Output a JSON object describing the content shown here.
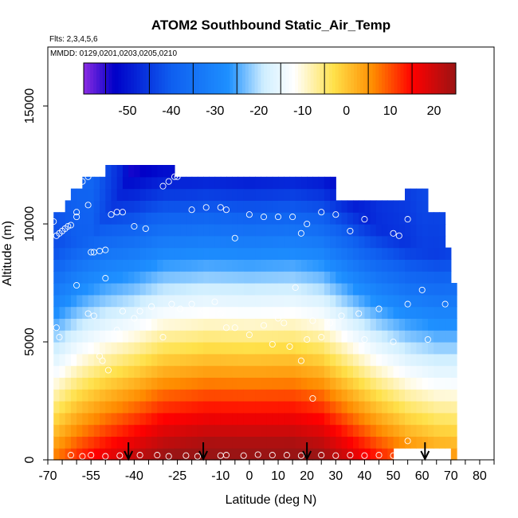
{
  "chart_data": {
    "type": "heatmap",
    "title": "ATOM2 Southbound Static_Air_Temp",
    "flights_label": "Flts: 2,3,4,5,6",
    "dates_label": "MMDD: 0129,0201,0203,0205,0210",
    "xlabel": "Latitude (deg N)",
    "ylabel": "Altitude (m)",
    "xlim": [
      -70,
      85
    ],
    "ylim": [
      0,
      17500
    ],
    "x_ticks": [
      -70,
      -55,
      -40,
      -25,
      -10,
      0,
      10,
      20,
      30,
      40,
      50,
      60,
      70,
      80
    ],
    "y_ticks": [
      0,
      5000,
      10000,
      15000
    ],
    "colorbar": {
      "range": [
        -60,
        25
      ],
      "ticks": [
        -50,
        -40,
        -30,
        -20,
        -10,
        0,
        10,
        20
      ],
      "colors": [
        "#8a2be2",
        "#0000c8",
        "#1e90ff",
        "#cfeeff",
        "#ffffff",
        "#ffe14a",
        "#ff8c00",
        "#ff0000",
        "#9a1414"
      ]
    },
    "colorscale": {
      "values": [
        -60,
        -53,
        -40,
        -27,
        -19,
        -12,
        -3,
        6,
        15,
        25
      ],
      "colors": [
        "#8a2be2",
        "#0000c8",
        "#0f5ff0",
        "#1e90ff",
        "#cfeeff",
        "#ffffff",
        "#ffe14a",
        "#ff8c00",
        "#ff0000",
        "#9a1414"
      ]
    },
    "arrows_lat": [
      -42,
      -16,
      20,
      61
    ],
    "observations": [
      [
        -68,
        10100
      ],
      [
        -67,
        9500
      ],
      [
        -66,
        9600
      ],
      [
        -65,
        9700
      ],
      [
        -64,
        9800
      ],
      [
        -63,
        9900
      ],
      [
        -62,
        9950
      ],
      [
        -60,
        10500
      ],
      [
        -60,
        10300
      ],
      [
        -58,
        11800
      ],
      [
        -56,
        12000
      ],
      [
        -54,
        12200
      ],
      [
        -56,
        10800
      ],
      [
        -55,
        8800
      ],
      [
        -54,
        8800
      ],
      [
        -52,
        8850
      ],
      [
        -50,
        8900
      ],
      [
        -50,
        7700
      ],
      [
        -48,
        10400
      ],
      [
        -46,
        10500
      ],
      [
        -44,
        10500
      ],
      [
        -40,
        9900
      ],
      [
        -36,
        9800
      ],
      [
        -30,
        11600
      ],
      [
        -28,
        11800
      ],
      [
        -26,
        12000
      ],
      [
        -25,
        12000
      ],
      [
        -20,
        10600
      ],
      [
        -15,
        10700
      ],
      [
        -10,
        10700
      ],
      [
        -8,
        10600
      ],
      [
        -5,
        9400
      ],
      [
        0,
        10400
      ],
      [
        5,
        10300
      ],
      [
        10,
        10300
      ],
      [
        15,
        10300
      ],
      [
        18,
        9600
      ],
      [
        20,
        10000
      ],
      [
        25,
        10500
      ],
      [
        30,
        10400
      ],
      [
        35,
        9700
      ],
      [
        40,
        10200
      ],
      [
        45,
        11300
      ],
      [
        47,
        11300
      ],
      [
        50,
        9600
      ],
      [
        52,
        9500
      ],
      [
        55,
        10200
      ],
      [
        -67,
        5600
      ],
      [
        -66,
        5200
      ],
      [
        -60,
        7400
      ],
      [
        -56,
        6200
      ],
      [
        -54,
        6100
      ],
      [
        -52,
        4400
      ],
      [
        -51,
        4200
      ],
      [
        -49,
        3800
      ],
      [
        -46,
        5500
      ],
      [
        -44,
        6300
      ],
      [
        -40,
        6000
      ],
      [
        -38,
        6300
      ],
      [
        -34,
        6500
      ],
      [
        -30,
        5200
      ],
      [
        -27,
        6600
      ],
      [
        -24,
        6400
      ],
      [
        -20,
        6600
      ],
      [
        -16,
        6300
      ],
      [
        -12,
        6700
      ],
      [
        -10,
        6200
      ],
      [
        -8,
        5600
      ],
      [
        -5,
        5600
      ],
      [
        0,
        5300
      ],
      [
        5,
        5700
      ],
      [
        8,
        4900
      ],
      [
        10,
        6000
      ],
      [
        12,
        5800
      ],
      [
        14,
        4800
      ],
      [
        16,
        7300
      ],
      [
        18,
        4200
      ],
      [
        20,
        5100
      ],
      [
        22,
        5900
      ],
      [
        25,
        5200
      ],
      [
        28,
        5800
      ],
      [
        32,
        6100
      ],
      [
        38,
        6200
      ],
      [
        40,
        5100
      ],
      [
        45,
        6400
      ],
      [
        50,
        5000
      ],
      [
        55,
        6600
      ],
      [
        60,
        7200
      ],
      [
        62,
        5100
      ],
      [
        68,
        6600
      ],
      [
        -62,
        200
      ],
      [
        -58,
        150
      ],
      [
        -55,
        200
      ],
      [
        -50,
        150
      ],
      [
        -45,
        180
      ],
      [
        -38,
        200
      ],
      [
        -32,
        200
      ],
      [
        -28,
        150
      ],
      [
        -22,
        180
      ],
      [
        -18,
        150
      ],
      [
        -10,
        180
      ],
      [
        -8,
        200
      ],
      [
        -2,
        180
      ],
      [
        3,
        220
      ],
      [
        8,
        200
      ],
      [
        13,
        200
      ],
      [
        18,
        180
      ],
      [
        22,
        2600
      ],
      [
        25,
        200
      ],
      [
        30,
        180
      ],
      [
        35,
        200
      ],
      [
        40,
        180
      ],
      [
        45,
        200
      ],
      [
        50,
        180
      ],
      [
        55,
        800
      ]
    ]
  }
}
